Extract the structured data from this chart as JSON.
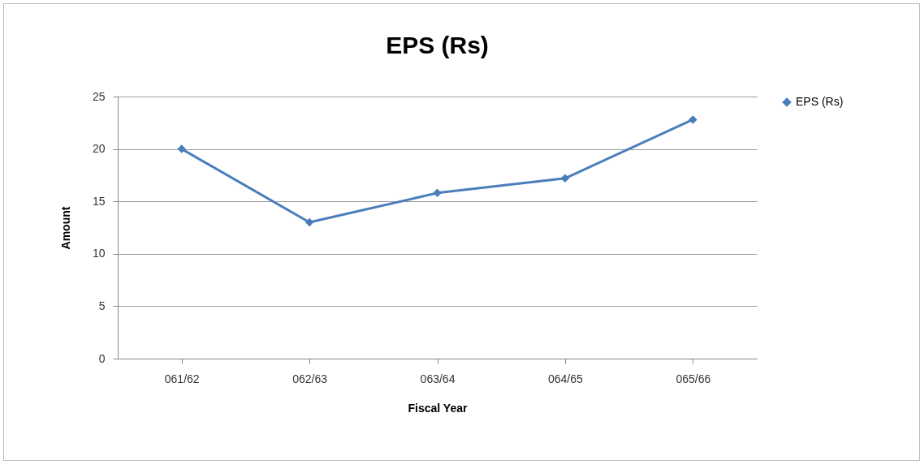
{
  "chart_data": {
    "type": "line",
    "title": "EPS (Rs)",
    "xlabel": "Fiscal Year",
    "ylabel": "Amount",
    "categories": [
      "061/62",
      "062/63",
      "063/64",
      "064/65",
      "065/66"
    ],
    "series": [
      {
        "name": "EPS (Rs)",
        "color": "#4a7ebb",
        "values": [
          20,
          13,
          15.8,
          17.2,
          22.8
        ]
      }
    ],
    "ylim": [
      0,
      25
    ],
    "yticks": [
      0,
      5,
      10,
      15,
      20,
      25
    ],
    "grid": "y",
    "legend": "right",
    "marker": "diamond",
    "line_style": "solid"
  }
}
